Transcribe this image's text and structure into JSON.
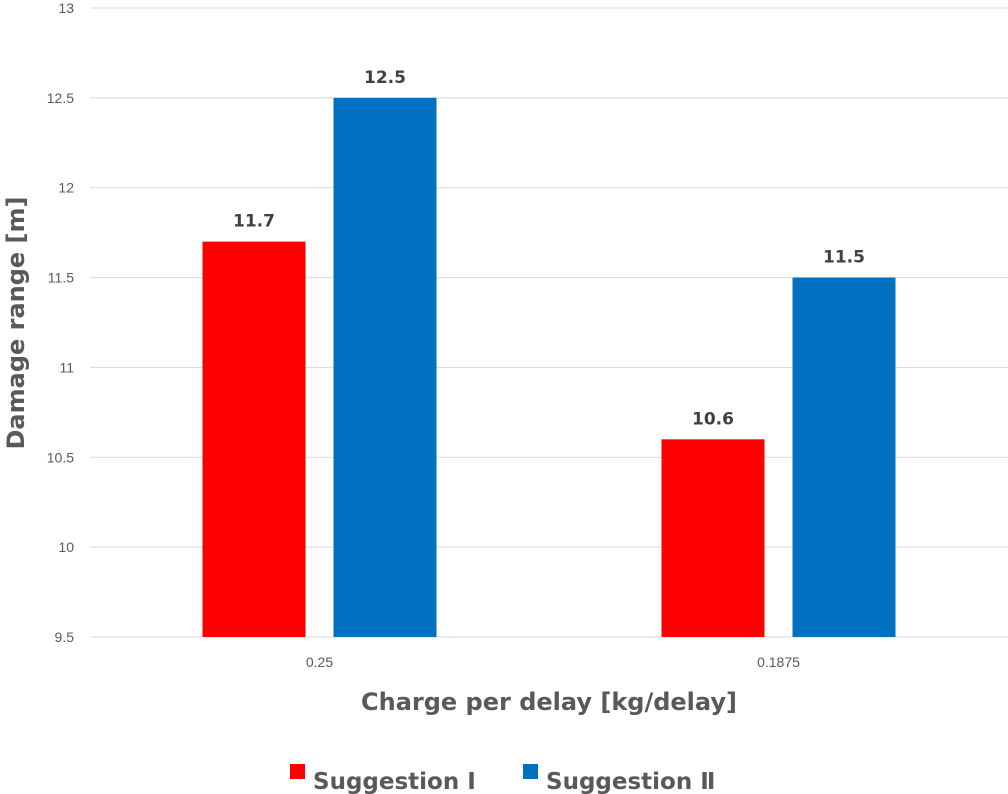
{
  "chart_data": {
    "type": "bar",
    "categories": [
      "0.25",
      "0.1875"
    ],
    "series": [
      {
        "name": "Suggestion Ⅰ",
        "values": [
          11.7,
          10.6
        ],
        "color": "#ff0000"
      },
      {
        "name": "Suggestion Ⅱ",
        "values": [
          12.5,
          11.5
        ],
        "color": "#0070c0"
      }
    ],
    "xlabel": "Charge per delay [kg/delay]",
    "ylabel": "Damage range [m]",
    "ylim": [
      9.5,
      13
    ],
    "yticks": [
      "9.5",
      "10",
      "10.5",
      "11",
      "11.5",
      "12",
      "12.5",
      "13"
    ],
    "grid": true,
    "legend_position": "bottom"
  }
}
